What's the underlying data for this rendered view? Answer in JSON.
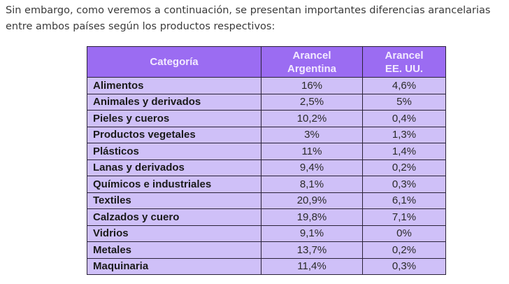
{
  "intro": "Sin embargo, como veremos a continuación, se presentan importantes diferencias arancelarias entre ambos países según los productos respectivos:",
  "table": {
    "headers": [
      "Categoría",
      "Arancel Argentina",
      "Arancel EE. UU."
    ],
    "rows": [
      [
        "Alimentos",
        "16%",
        "4,6%"
      ],
      [
        "Animales y derivados",
        "2,5%",
        "5%"
      ],
      [
        "Pieles y cueros",
        "10,2%",
        "0,4%"
      ],
      [
        "Productos vegetales",
        "3%",
        "1,3%"
      ],
      [
        "Plásticos",
        "11%",
        "1,4%"
      ],
      [
        "Lanas y derivados",
        "9,4%",
        "0,2%"
      ],
      [
        "Químicos e industriales",
        "8,1%",
        "0,3%"
      ],
      [
        "Textiles",
        "20,9%",
        "6,1%"
      ],
      [
        "Calzados y cuero",
        "19,8%",
        "7,1%"
      ],
      [
        "Vidrios",
        "9,1%",
        "0%"
      ],
      [
        "Metales",
        "13,7%",
        "0,2%"
      ],
      [
        "Maquinaria",
        "11,4%",
        "0,3%"
      ]
    ]
  },
  "colors": {
    "header": "#9b6cf2",
    "row": "#cfc0f8"
  }
}
